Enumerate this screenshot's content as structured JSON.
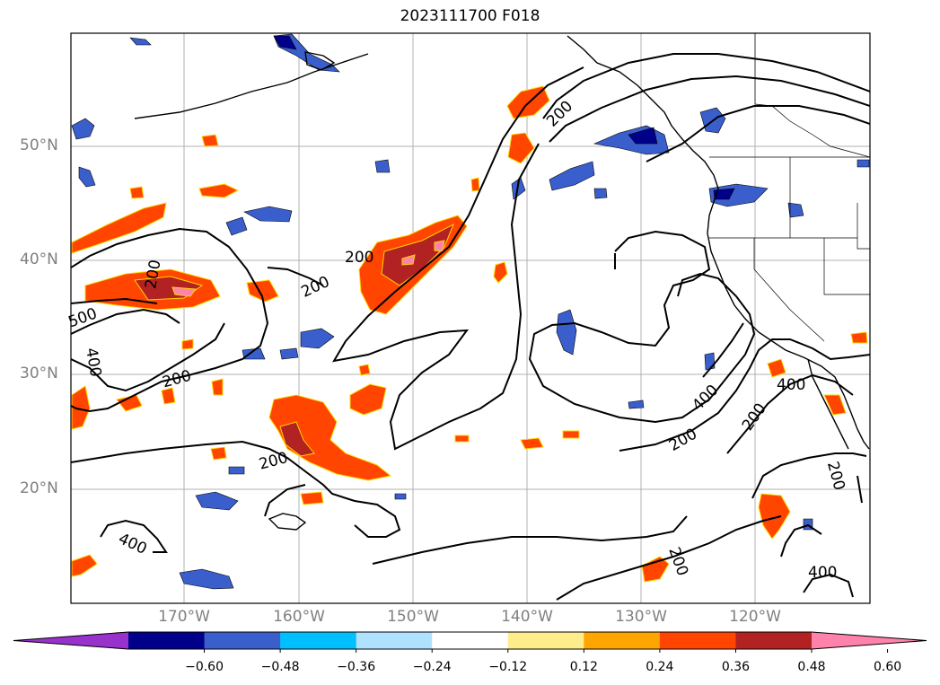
{
  "title": "2023111700 F018",
  "map": {
    "lat_labels": [
      "50°N",
      "40°N",
      "30°N",
      "20°N"
    ],
    "lon_labels": [
      "170°W",
      "160°W",
      "150°W",
      "140°W",
      "130°W",
      "120°W"
    ],
    "contour_labels": [
      "200",
      "200",
      "200",
      "200",
      "200",
      "200",
      "200",
      "200",
      "200",
      "200",
      "400",
      "400",
      "400",
      "400",
      "400",
      "500"
    ]
  },
  "colorbar": {
    "ticks": [
      "−0.60",
      "−0.48",
      "−0.36",
      "−0.24",
      "−0.12",
      "0.12",
      "0.24",
      "0.36",
      "0.48",
      "0.60"
    ],
    "colors": [
      "#9932cc",
      "#00008b",
      "#3a5fcd",
      "#00bfff",
      "#b0e2ff",
      "#ffffff",
      "#ffec8b",
      "#ffa500",
      "#ff4500",
      "#b22222",
      "#ff82ab"
    ]
  }
}
